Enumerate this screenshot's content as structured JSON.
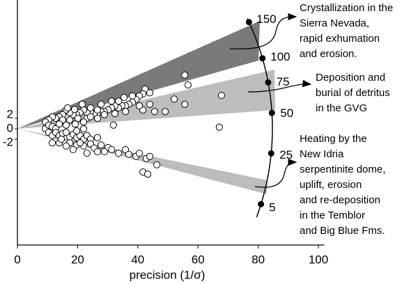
{
  "chart_data": {
    "type": "scatter",
    "x_label": "precision (1/σ)",
    "xlim": [
      0,
      102
    ],
    "ylim": [
      -22.3,
      24.7
    ],
    "xticks": [
      0,
      20,
      40,
      60,
      80,
      100
    ],
    "yticks": [
      -2,
      0,
      2
    ],
    "age_ticks": [
      5,
      25,
      50,
      75,
      100,
      150
    ],
    "marker_color": "#ffffff",
    "x": [
      55.6,
      56.7,
      67.8,
      42.4,
      41.7,
      44.0,
      40.5,
      39.4,
      38.2,
      37.0,
      35.9,
      34.7,
      33.6,
      32.4,
      31.3,
      30.1,
      28.9,
      27.8,
      26.6,
      25.5,
      24.3,
      23.1,
      22.0,
      20.8,
      19.7,
      18.5,
      17.4,
      16.2,
      15.0,
      13.9,
      12.7,
      11.6,
      10.4,
      9.3,
      38.2,
      49.1,
      55.6,
      52.1,
      44.0,
      45.6,
      41.7,
      35.9,
      32.4,
      28.9,
      26.6,
      23.1,
      20.1,
      17.4,
      15.0,
      40.5,
      35.4,
      31.3,
      27.8,
      24.3,
      21.5,
      19.0,
      16.7,
      24.3,
      22.0,
      19.2,
      16.2,
      13.9,
      67.1,
      26.6,
      33.6,
      9.3,
      10.4,
      11.6,
      12.7,
      10.4,
      11.6,
      12.7,
      13.9,
      15.0,
      16.2,
      17.4,
      18.5,
      19.7,
      20.8,
      22.0,
      23.1,
      24.3,
      17.4,
      19.7,
      16.2,
      13.9,
      11.6,
      22.0,
      24.3,
      18.5,
      25.5,
      27.8,
      30.1,
      28.9,
      31.3,
      33.6,
      35.9,
      37.0,
      39.4,
      40.5,
      42.8,
      44.0,
      46.3,
      41.7,
      43.3,
      31.9,
      22.0,
      26.6,
      19.7,
      14.6,
      23.1,
      20.8,
      26.6
    ],
    "y": [
      10.3,
      8.4,
      6.4,
      7.6,
      6.7,
      6.9,
      6.3,
      5.6,
      5.1,
      4.7,
      4.4,
      4.4,
      4.0,
      4.4,
      4.0,
      3.6,
      3.3,
      3.3,
      2.9,
      2.9,
      3.3,
      3.1,
      3.6,
      3.1,
      2.7,
      2.7,
      3.1,
      3.6,
      2.7,
      2.3,
      2.0,
      2.3,
      1.7,
      1.3,
      6.3,
      3.3,
      4.7,
      5.7,
      4.7,
      3.3,
      3.6,
      3.3,
      2.9,
      2.7,
      2.0,
      2.0,
      2.0,
      1.7,
      1.7,
      4.4,
      6.0,
      5.3,
      4.7,
      4.0,
      4.7,
      3.7,
      4.0,
      2.3,
      1.3,
      0.9,
      0.7,
      0.9,
      0.3,
      3.6,
      5.3,
      0,
      0.7,
      0.4,
      0,
      -0.7,
      -1.3,
      -0.7,
      -1.3,
      -0.9,
      -0.7,
      -1.6,
      -1.1,
      -1.7,
      -1.3,
      -2.0,
      -1.3,
      -2.0,
      -2.7,
      -3.1,
      -3.3,
      -2.7,
      -2.7,
      -3.3,
      -2.9,
      -4.0,
      -3.7,
      -3.1,
      -3.6,
      -4.4,
      -4.0,
      -4.7,
      -4.0,
      -4.9,
      -5.3,
      -4.7,
      -5.7,
      -5.3,
      -6.9,
      -8.3,
      -8.7,
      0.7,
      0,
      -1.7,
      -0.4,
      -2.0,
      -4.7,
      -2.7,
      -4.4
    ],
    "annotations": [
      {
        "lines": [
          "Crystallization in the",
          "Sierra Nevada,",
          "rapid exhumation",
          "and erosion."
        ]
      },
      {
        "lines": [
          "Deposition and",
          "burial of detritus",
          "in the GVG"
        ]
      },
      {
        "lines": [
          "Heating by the",
          "New Idria",
          "serpentinite dome,",
          "uplift, erosion",
          "and re-deposition",
          "in the Temblor",
          "and Big Blue Fms."
        ]
      }
    ]
  }
}
